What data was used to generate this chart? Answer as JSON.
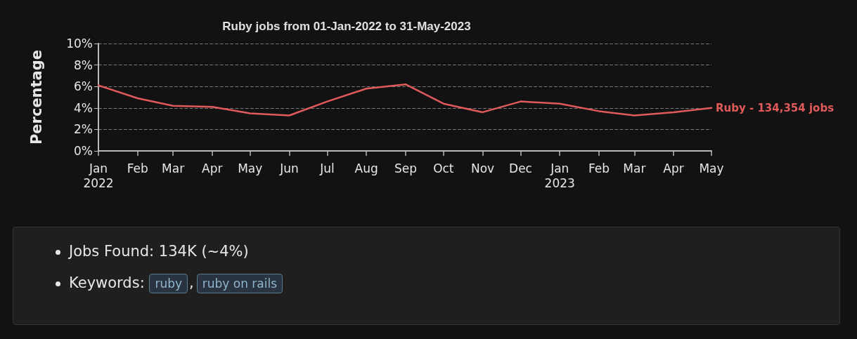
{
  "chart_data": {
    "type": "line",
    "title": "Ruby jobs from 01-Jan-2022 to 31-May-2023",
    "ylabel": "Percentage",
    "x": [
      "2022-01",
      "2022-02",
      "2022-03",
      "2022-04",
      "2022-05",
      "2022-06",
      "2022-07",
      "2022-08",
      "2022-09",
      "2022-10",
      "2022-11",
      "2022-12",
      "2023-01",
      "2023-02",
      "2023-03",
      "2023-04",
      "2023-05"
    ],
    "series": [
      {
        "name": "Ruby - 134,354 jobs",
        "color": "#e05a5a",
        "values": [
          6.1,
          4.9,
          4.2,
          4.1,
          3.5,
          3.3,
          4.6,
          5.8,
          6.2,
          4.4,
          3.6,
          4.6,
          4.4,
          3.7,
          3.3,
          3.6,
          4.0
        ]
      }
    ],
    "xlim": [
      "2022-01",
      "2023-05"
    ],
    "xticks": [
      {
        "value": "2022-01",
        "label": "Jan\n2022"
      },
      {
        "value": "2022-02",
        "label": "Feb"
      },
      {
        "value": "2022-03",
        "label": "Mar"
      },
      {
        "value": "2022-04",
        "label": "Apr"
      },
      {
        "value": "2022-05",
        "label": "May"
      },
      {
        "value": "2022-06",
        "label": "Jun"
      },
      {
        "value": "2022-07",
        "label": "Jul"
      },
      {
        "value": "2022-08",
        "label": "Aug"
      },
      {
        "value": "2022-09",
        "label": "Sep"
      },
      {
        "value": "2022-10",
        "label": "Oct"
      },
      {
        "value": "2022-11",
        "label": "Nov"
      },
      {
        "value": "2022-12",
        "label": "Dec"
      },
      {
        "value": "2023-01",
        "label": "Jan\n2023"
      },
      {
        "value": "2023-02",
        "label": "Feb"
      },
      {
        "value": "2023-03",
        "label": "Mar"
      },
      {
        "value": "2023-04",
        "label": "Apr"
      },
      {
        "value": "2023-05",
        "label": "May"
      }
    ],
    "ylim": [
      0,
      10
    ],
    "yticks": [
      {
        "value": 0,
        "label": "0%"
      },
      {
        "value": 2,
        "label": "2%"
      },
      {
        "value": 4,
        "label": "4%"
      },
      {
        "value": 6,
        "label": "6%"
      },
      {
        "value": 8,
        "label": "8%"
      },
      {
        "value": 10,
        "label": "10%"
      }
    ],
    "grid": "y",
    "legend": false,
    "marker": "none",
    "line_style": "solid",
    "annotations": [
      "Jobs Found: 134K (~4%)",
      "Keywords:",
      "ruby",
      ",",
      "ruby on rails"
    ]
  }
}
